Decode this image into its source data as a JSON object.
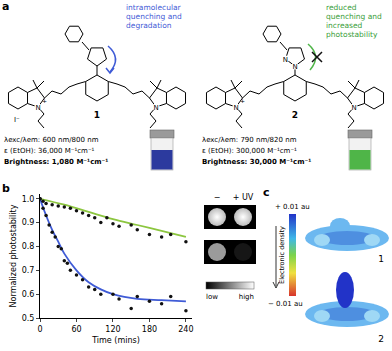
{
  "panel_a": {
    "letter": "a",
    "atom_labels": {
      "nitrogen": "N",
      "charge": "+",
      "iodide": "I⁻"
    },
    "compounds": [
      {
        "label": "1",
        "note": "intramolecular quenching and degradation",
        "excitation_emission": "λexc/λem: 600 nm/800 nm",
        "epsilon": "ε (EtOH): 36,000 M⁻¹cm⁻¹",
        "brightness": "Brightness: 1,080 M⁻¹cm⁻¹",
        "color": "#2c3a9e"
      },
      {
        "label": "2",
        "note": "reduced quenching and increased photostability",
        "excitation_emission": "λexc/λem: 790 nm/820 nm",
        "epsilon": "ε (EtOH): 300,000 M⁻¹cm⁻¹",
        "brightness": "Brightness: 30,000 M⁻¹cm⁻¹",
        "color": "#4fb548"
      }
    ]
  },
  "panel_b": {
    "letter": "b",
    "image_columns": [
      "−",
      "+ UV"
    ],
    "scale_labels": [
      "low",
      "high"
    ]
  },
  "chart_data": {
    "type": "scatter",
    "x_label": "Time (mins)",
    "y_label": "Normalized photostability",
    "xlim": [
      0,
      250
    ],
    "xticks": [
      0,
      60,
      120,
      180,
      240
    ],
    "ylim": [
      0.5,
      1.02
    ],
    "yticks": [
      0.5,
      0.6,
      0.7,
      0.8,
      0.9,
      {
        "value": 1.0,
        "label": "1.0"
      }
    ],
    "grid": false,
    "series": [
      {
        "type": "line",
        "color": "#8cc63f",
        "line_style": "solid",
        "x": [
          0,
          40,
          80,
          120,
          160,
          200,
          240
        ],
        "values": [
          1.0,
          0.975,
          0.945,
          0.915,
          0.89,
          0.865,
          0.84
        ]
      },
      {
        "type": "line",
        "color": "#3f5bd6",
        "line_style": "solid",
        "x": [
          0,
          10,
          20,
          30,
          40,
          60,
          80,
          100,
          120,
          160,
          200,
          240
        ],
        "values": [
          1.0,
          0.93,
          0.87,
          0.82,
          0.77,
          0.7,
          0.65,
          0.62,
          0.6,
          0.58,
          0.575,
          0.57
        ]
      },
      {
        "type": "scatter",
        "color": "#111111",
        "marker": "circle",
        "x": [
          0,
          5,
          10,
          20,
          30,
          40,
          50,
          60,
          70,
          80,
          90,
          100,
          110,
          120,
          130,
          150,
          160,
          180,
          200,
          215,
          240
        ],
        "values": [
          1.0,
          0.99,
          0.98,
          0.975,
          0.97,
          0.965,
          0.96,
          0.95,
          0.94,
          0.93,
          0.92,
          0.9,
          0.92,
          0.895,
          0.885,
          0.89,
          0.87,
          0.85,
          0.84,
          0.85,
          0.82
        ]
      },
      {
        "type": "scatter",
        "color": "#111111",
        "marker": "circle",
        "x": [
          0,
          5,
          10,
          15,
          20,
          25,
          30,
          35,
          40,
          45,
          50,
          60,
          70,
          80,
          90,
          100,
          120,
          130,
          150,
          160,
          180,
          200,
          215,
          240
        ],
        "values": [
          1.0,
          0.96,
          0.93,
          0.89,
          0.86,
          0.84,
          0.8,
          0.79,
          0.74,
          0.73,
          0.7,
          0.68,
          0.66,
          0.63,
          0.62,
          0.6,
          0.6,
          0.58,
          0.54,
          0.59,
          0.57,
          0.56,
          0.59,
          0.53
        ]
      }
    ]
  },
  "panel_c": {
    "letter": "c",
    "top_label": "+ 0.01 au",
    "bottom_label": "− 0.01 au",
    "axis_label": "Electronic density",
    "maps": [
      "1",
      "2"
    ]
  }
}
